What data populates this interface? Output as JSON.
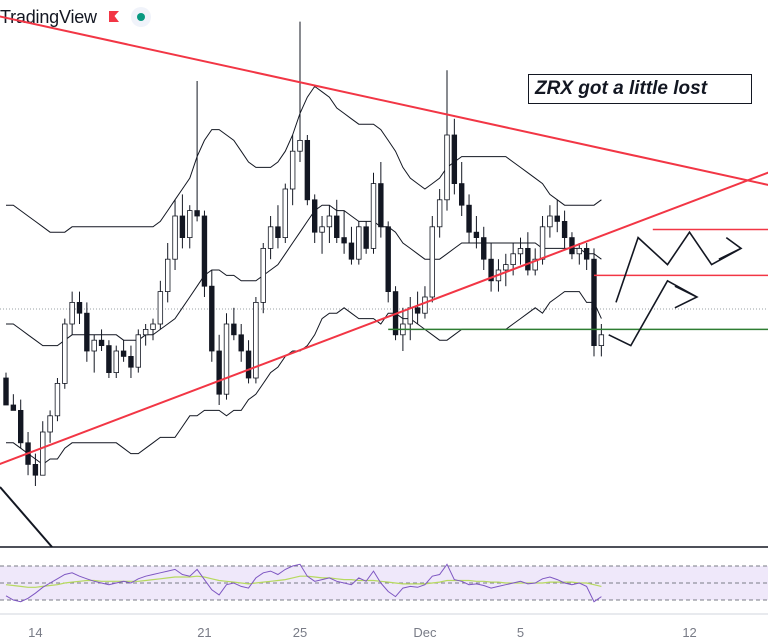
{
  "brand": {
    "label": "TradingView",
    "flag_color": "#f23645",
    "status_color": "#089981"
  },
  "annotation": {
    "text": "ZRX got a little lost"
  },
  "chart_data": {
    "type": "candlestick",
    "y_range": [
      0,
      100
    ],
    "x_ticks": [
      {
        "label": "14",
        "x": 4
      },
      {
        "label": "21",
        "x": 27
      },
      {
        "label": "25",
        "x": 40
      },
      {
        "label": "Dec",
        "x": 57
      },
      {
        "label": "5",
        "x": 70
      },
      {
        "label": "12",
        "x": 93
      }
    ],
    "candles": [
      [
        0,
        30,
        31,
        25,
        25
      ],
      [
        1,
        25,
        27,
        24,
        24
      ],
      [
        2,
        24,
        26,
        17,
        18
      ],
      [
        3,
        18,
        20,
        12,
        14
      ],
      [
        4,
        14,
        16,
        10,
        12
      ],
      [
        5,
        12,
        22,
        12,
        20
      ],
      [
        6,
        20,
        24,
        18,
        23
      ],
      [
        7,
        23,
        30,
        22,
        29
      ],
      [
        8,
        29,
        41,
        28,
        40
      ],
      [
        9,
        40,
        46,
        38,
        44
      ],
      [
        10,
        44,
        46,
        40,
        42
      ],
      [
        11,
        42,
        44,
        33,
        35
      ],
      [
        12,
        35,
        38,
        31,
        37
      ],
      [
        13,
        37,
        39,
        35,
        36
      ],
      [
        14,
        36,
        37,
        30,
        31
      ],
      [
        15,
        31,
        36,
        30,
        35
      ],
      [
        16,
        35,
        37,
        33,
        34
      ],
      [
        17,
        34,
        36,
        30,
        32
      ],
      [
        18,
        32,
        39,
        31,
        38
      ],
      [
        19,
        38,
        40,
        36,
        39
      ],
      [
        20,
        39,
        41,
        37,
        40
      ],
      [
        21,
        40,
        48,
        39,
        46
      ],
      [
        22,
        46,
        55,
        44,
        52
      ],
      [
        23,
        52,
        63,
        50,
        60
      ],
      [
        24,
        60,
        64,
        54,
        56
      ],
      [
        25,
        56,
        62,
        54,
        61
      ],
      [
        26,
        61,
        85,
        59,
        60
      ],
      [
        27,
        60,
        61,
        45,
        47
      ],
      [
        28,
        47,
        50,
        33,
        35
      ],
      [
        29,
        35,
        38,
        25,
        27
      ],
      [
        30,
        27,
        42,
        26,
        40
      ],
      [
        31,
        40,
        43,
        37,
        38
      ],
      [
        32,
        38,
        40,
        33,
        35
      ],
      [
        33,
        35,
        37,
        29,
        30
      ],
      [
        34,
        30,
        45,
        29,
        44
      ],
      [
        35,
        44,
        55,
        42,
        54
      ],
      [
        36,
        54,
        60,
        52,
        58
      ],
      [
        37,
        58,
        62,
        54,
        56
      ],
      [
        38,
        56,
        66,
        55,
        65
      ],
      [
        39,
        65,
        75,
        62,
        72
      ],
      [
        40,
        72,
        96,
        70,
        74
      ],
      [
        41,
        74,
        75,
        62,
        63
      ],
      [
        42,
        63,
        64,
        55,
        57
      ],
      [
        43,
        57,
        60,
        53,
        58
      ],
      [
        44,
        58,
        62,
        55,
        60
      ],
      [
        45,
        60,
        63,
        55,
        56
      ],
      [
        46,
        56,
        61,
        53,
        55
      ],
      [
        47,
        55,
        58,
        51,
        52
      ],
      [
        48,
        52,
        59,
        51,
        58
      ],
      [
        49,
        58,
        59,
        53,
        54
      ],
      [
        50,
        54,
        68,
        53,
        66
      ],
      [
        51,
        66,
        70,
        56,
        58
      ],
      [
        52,
        58,
        59,
        44,
        46
      ],
      [
        53,
        46,
        47,
        37,
        38
      ],
      [
        54,
        38,
        43,
        35,
        40
      ],
      [
        55,
        40,
        45,
        37,
        43
      ],
      [
        56,
        43,
        46,
        40,
        42
      ],
      [
        57,
        42,
        47,
        41,
        45
      ],
      [
        58,
        45,
        60,
        44,
        58
      ],
      [
        59,
        58,
        65,
        56,
        63
      ],
      [
        60,
        63,
        87,
        61,
        75
      ],
      [
        61,
        75,
        78,
        64,
        66
      ],
      [
        62,
        66,
        70,
        60,
        62
      ],
      [
        63,
        62,
        64,
        55,
        57
      ],
      [
        64,
        57,
        60,
        54,
        56
      ],
      [
        65,
        56,
        58,
        50,
        52
      ],
      [
        66,
        52,
        55,
        46,
        48
      ],
      [
        67,
        48,
        52,
        46,
        50
      ],
      [
        68,
        50,
        53,
        47,
        51
      ],
      [
        69,
        51,
        55,
        49,
        53
      ],
      [
        70,
        53,
        56,
        51,
        54
      ],
      [
        71,
        54,
        57,
        49,
        50
      ],
      [
        72,
        50,
        54,
        49,
        52
      ],
      [
        73,
        52,
        60,
        51,
        58
      ],
      [
        74,
        58,
        62,
        56,
        60
      ],
      [
        75,
        60,
        63,
        57,
        59
      ],
      [
        76,
        59,
        61,
        54,
        56
      ],
      [
        77,
        56,
        57,
        52,
        53
      ],
      [
        78,
        53,
        55,
        51,
        54
      ],
      [
        79,
        54,
        55,
        50,
        52
      ],
      [
        80,
        52,
        54,
        34,
        36
      ],
      [
        81,
        36,
        40,
        34,
        38
      ]
    ],
    "trendlines": {
      "descending_resistance": [
        [
          -1,
          97
        ],
        [
          123,
          60
        ]
      ],
      "ascending_support": [
        [
          -1,
          14
        ],
        [
          123,
          78
        ]
      ],
      "horizontal_support": [
        [
          52,
          39
        ],
        [
          106,
          39
        ]
      ],
      "short_red_levels": [
        [
          [
            88,
            57.5
          ],
          [
            106,
            57.5
          ]
        ],
        [
          [
            80,
            49
          ],
          [
            106,
            49
          ]
        ]
      ]
    },
    "projections": [
      [
        [
          83,
          44
        ],
        [
          86,
          56
        ],
        [
          90,
          51
        ],
        [
          93,
          57
        ],
        [
          96,
          51
        ],
        [
          100,
          54
        ],
        [
          97,
          52
        ],
        [
          100,
          54
        ],
        [
          98,
          56
        ]
      ],
      [
        [
          82,
          38
        ],
        [
          85,
          36
        ],
        [
          90,
          48
        ],
        [
          94,
          45
        ],
        [
          91,
          43
        ],
        [
          94,
          45
        ],
        [
          91,
          47
        ]
      ]
    ],
    "bollinger": {
      "upper": [
        62,
        62,
        61,
        60,
        59,
        58,
        57,
        57,
        57,
        58,
        58,
        58,
        58,
        58,
        58,
        58,
        58,
        58,
        58,
        58,
        58,
        59,
        61,
        63,
        65,
        67,
        71,
        74,
        76,
        76,
        75,
        74,
        72,
        70,
        69,
        69,
        69,
        70,
        72,
        75,
        79,
        82,
        84,
        83,
        82,
        80,
        79,
        78,
        77,
        77,
        77,
        76,
        74,
        72,
        69,
        67,
        66,
        65,
        66,
        67,
        69,
        70,
        71,
        71,
        71,
        71,
        71,
        71,
        71,
        70,
        69,
        68,
        67,
        66,
        64,
        63,
        62,
        62,
        62,
        62,
        62,
        63
      ],
      "middle": [
        40,
        40,
        39,
        38,
        37,
        36,
        36,
        36,
        37,
        38,
        38,
        38,
        38,
        38,
        38,
        38,
        37,
        37,
        37,
        38,
        38,
        39,
        40,
        41,
        43,
        45,
        47,
        49,
        50,
        50,
        49,
        49,
        48,
        48,
        48,
        49,
        50,
        51,
        53,
        55,
        57,
        59,
        61,
        62,
        62,
        61,
        61,
        60,
        59,
        59,
        59,
        58,
        58,
        57,
        55,
        54,
        53,
        52,
        52,
        52,
        53,
        54,
        55,
        55,
        55,
        55,
        55,
        55,
        55,
        55,
        55,
        55,
        55,
        54,
        54,
        54,
        54,
        54,
        54,
        53,
        53,
        52
      ],
      "lower": [
        18,
        18,
        17,
        16,
        15,
        14,
        15,
        15,
        17,
        18,
        18,
        18,
        18,
        18,
        18,
        18,
        17,
        16,
        16,
        17,
        18,
        19,
        19,
        19,
        21,
        23,
        23,
        24,
        24,
        24,
        23,
        24,
        24,
        26,
        27,
        29,
        31,
        32,
        34,
        35,
        35,
        36,
        38,
        41,
        42,
        42,
        43,
        42,
        41,
        41,
        41,
        40,
        42,
        42,
        41,
        41,
        40,
        39,
        38,
        37,
        37,
        38,
        39,
        39,
        39,
        39,
        39,
        39,
        39,
        40,
        41,
        42,
        43,
        42,
        44,
        45,
        46,
        46,
        46,
        44,
        44,
        41
      ]
    },
    "rsi": {
      "levels": [
        70,
        50,
        30
      ],
      "values": [
        35,
        30,
        28,
        32,
        38,
        45,
        50,
        55,
        60,
        62,
        58,
        55,
        52,
        50,
        48,
        50,
        52,
        50,
        55,
        58,
        60,
        62,
        64,
        66,
        60,
        58,
        66,
        54,
        42,
        36,
        48,
        50,
        46,
        44,
        56,
        62,
        64,
        60,
        66,
        70,
        72,
        58,
        52,
        54,
        56,
        52,
        50,
        48,
        56,
        52,
        64,
        50,
        40,
        34,
        44,
        46,
        45,
        48,
        58,
        60,
        72,
        54,
        52,
        48,
        49,
        47,
        44,
        46,
        48,
        50,
        52,
        49,
        50,
        55,
        57,
        54,
        50,
        48,
        50,
        46,
        28,
        34
      ],
      "ma": [
        48,
        47,
        46,
        45,
        45,
        46,
        47,
        48,
        50,
        51,
        52,
        53,
        53,
        52,
        52,
        52,
        52,
        52,
        52,
        53,
        54,
        55,
        56,
        57,
        57,
        57,
        58,
        57,
        55,
        53,
        52,
        51,
        50,
        49,
        50,
        51,
        52,
        53,
        54,
        56,
        58,
        58,
        57,
        56,
        56,
        55,
        54,
        54,
        53,
        53,
        53,
        52,
        51,
        50,
        49,
        49,
        49,
        49,
        50,
        51,
        53,
        53,
        53,
        53,
        52,
        52,
        51,
        51,
        50,
        50,
        50,
        50,
        50,
        50,
        51,
        51,
        51,
        51,
        50,
        50,
        48,
        46
      ]
    }
  }
}
